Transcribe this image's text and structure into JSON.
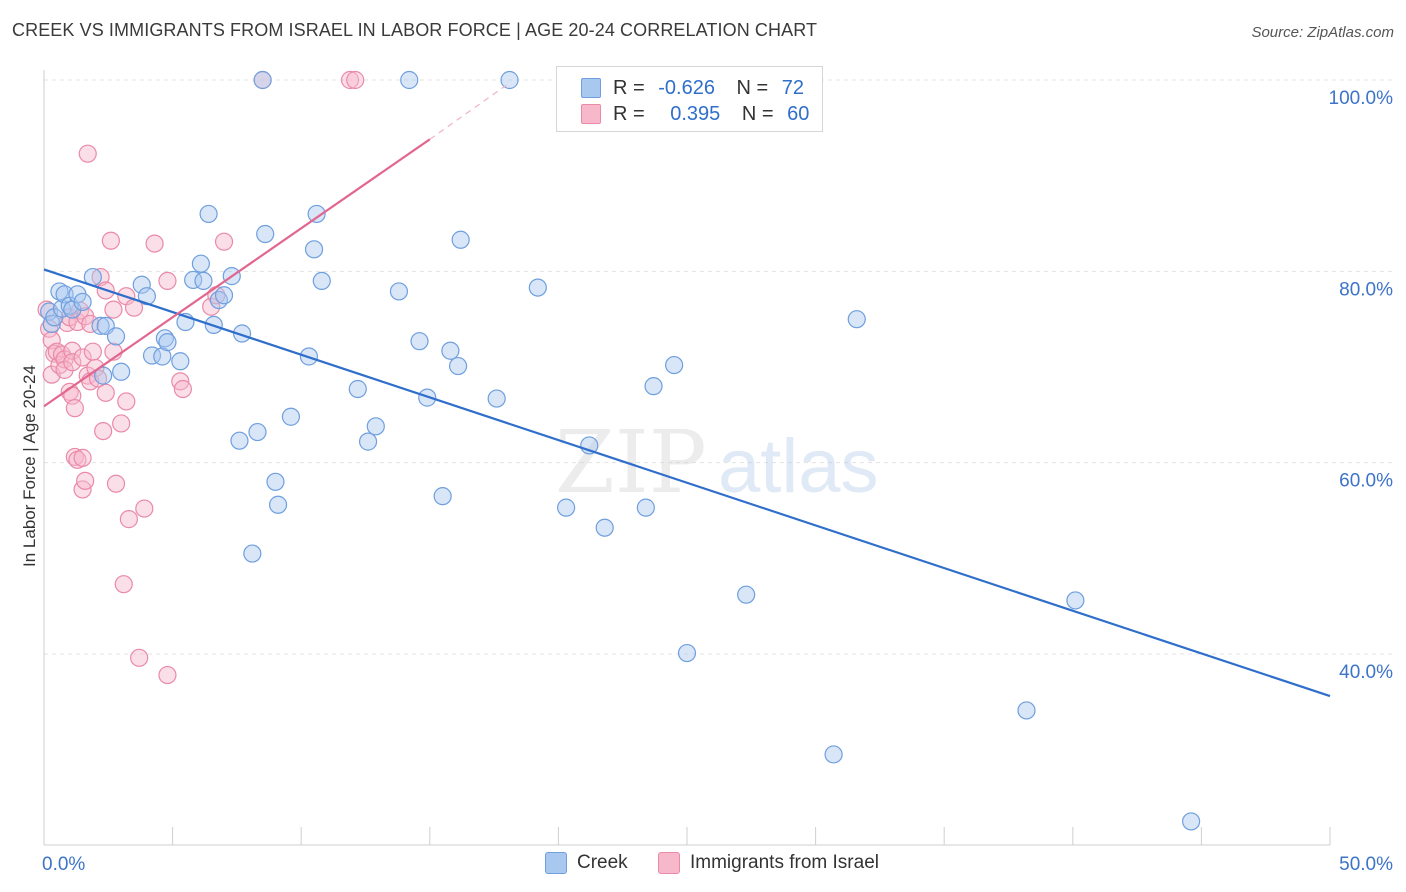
{
  "title": "CREEK VS IMMIGRANTS FROM ISRAEL IN LABOR FORCE | AGE 20-24 CORRELATION CHART",
  "source": "Source: ZipAtlas.com",
  "watermark": {
    "zip": "ZIP",
    "atlas": "atlas"
  },
  "legend": {
    "r_label": "R =",
    "n_label": "N =",
    "series": [
      {
        "r": "-0.626",
        "n": "72"
      },
      {
        "r": "0.395",
        "n": "60"
      }
    ]
  },
  "colors": {
    "creek_fill": "#a9c8f0",
    "creek_stroke": "#6f9fde",
    "creek_line": "#2f6fcb",
    "israel_fill": "#f7b8cb",
    "israel_stroke": "#ea8aa8",
    "israel_line": "#e2678f",
    "tick_text": "#3d73c9"
  },
  "chart_data": {
    "type": "scatter",
    "title": "CREEK VS IMMIGRANTS FROM ISRAEL IN LABOR FORCE | AGE 20-24 CORRELATION CHART",
    "xlabel": "",
    "ylabel": "In Labor Force | Age 20-24",
    "xlim": [
      0,
      50
    ],
    "ylim": [
      20,
      102
    ],
    "x_tick_labels": [
      "0.0%",
      "50.0%"
    ],
    "y_ticks": [
      40,
      60,
      80,
      100
    ],
    "y_tick_labels": [
      "40.0%",
      "60.0%",
      "80.0%",
      "100.0%"
    ],
    "grid": true,
    "legend_position": "top-center",
    "series": [
      {
        "name": "Creek",
        "trend": {
          "x": [
            0,
            50
          ],
          "y": [
            80.2,
            35.6
          ]
        },
        "points": [
          [
            0.2,
            75.8
          ],
          [
            0.3,
            74.5
          ],
          [
            0.4,
            75.2
          ],
          [
            0.6,
            77.9
          ],
          [
            0.7,
            76.1
          ],
          [
            0.8,
            77.6
          ],
          [
            1.0,
            76.4
          ],
          [
            1.1,
            76.0
          ],
          [
            1.3,
            77.6
          ],
          [
            1.5,
            76.8
          ],
          [
            1.9,
            79.4
          ],
          [
            2.2,
            74.3
          ],
          [
            2.3,
            69.1
          ],
          [
            2.4,
            74.3
          ],
          [
            2.8,
            73.2
          ],
          [
            3.0,
            69.5
          ],
          [
            3.8,
            78.6
          ],
          [
            4.0,
            77.4
          ],
          [
            4.2,
            71.2
          ],
          [
            4.6,
            71.1
          ],
          [
            4.7,
            73.0
          ],
          [
            4.8,
            72.6
          ],
          [
            5.3,
            70.6
          ],
          [
            5.5,
            74.7
          ],
          [
            5.8,
            79.1
          ],
          [
            6.1,
            80.8
          ],
          [
            6.2,
            79.0
          ],
          [
            6.4,
            86.0
          ],
          [
            6.6,
            74.4
          ],
          [
            6.8,
            77.0
          ],
          [
            7.0,
            77.5
          ],
          [
            7.3,
            79.5
          ],
          [
            7.6,
            62.3
          ],
          [
            7.7,
            73.5
          ],
          [
            8.1,
            50.5
          ],
          [
            8.3,
            63.2
          ],
          [
            8.5,
            100.0
          ],
          [
            8.6,
            83.9
          ],
          [
            9.0,
            58.0
          ],
          [
            9.1,
            55.6
          ],
          [
            9.6,
            64.8
          ],
          [
            10.3,
            71.1
          ],
          [
            10.5,
            82.3
          ],
          [
            10.6,
            86.0
          ],
          [
            10.8,
            79.0
          ],
          [
            12.2,
            67.7
          ],
          [
            12.6,
            62.2
          ],
          [
            12.9,
            63.8
          ],
          [
            13.8,
            77.9
          ],
          [
            14.2,
            100.0
          ],
          [
            14.6,
            72.7
          ],
          [
            14.9,
            66.8
          ],
          [
            15.5,
            56.5
          ],
          [
            15.8,
            71.7
          ],
          [
            16.1,
            70.1
          ],
          [
            16.2,
            83.3
          ],
          [
            17.6,
            66.7
          ],
          [
            18.1,
            100.0
          ],
          [
            19.2,
            78.3
          ],
          [
            20.3,
            55.3
          ],
          [
            21.2,
            61.8
          ],
          [
            21.8,
            53.2
          ],
          [
            23.4,
            55.3
          ],
          [
            23.7,
            68.0
          ],
          [
            24.5,
            70.2
          ],
          [
            25.0,
            40.1
          ],
          [
            27.3,
            46.2
          ],
          [
            30.7,
            29.5
          ],
          [
            31.6,
            75.0
          ],
          [
            38.2,
            34.1
          ],
          [
            40.1,
            45.6
          ],
          [
            44.6,
            22.5
          ]
        ]
      },
      {
        "name": "Immigrants from Israel",
        "trend": {
          "x": [
            0,
            15
          ],
          "y": [
            65.9,
            93.8
          ]
        },
        "trend_dashed": {
          "x": [
            15,
            18
          ],
          "y": [
            93.8,
            99.5
          ]
        },
        "points": [
          [
            0.1,
            76.0
          ],
          [
            0.2,
            74.0
          ],
          [
            0.3,
            72.8
          ],
          [
            0.3,
            69.2
          ],
          [
            0.4,
            71.4
          ],
          [
            0.5,
            71.6
          ],
          [
            0.6,
            70.2
          ],
          [
            0.7,
            71.3
          ],
          [
            0.8,
            70.8
          ],
          [
            0.8,
            69.7
          ],
          [
            0.9,
            74.6
          ],
          [
            1.0,
            75.2
          ],
          [
            1.0,
            67.4
          ],
          [
            1.1,
            67.0
          ],
          [
            1.1,
            71.7
          ],
          [
            1.1,
            70.5
          ],
          [
            1.2,
            65.7
          ],
          [
            1.2,
            60.6
          ],
          [
            1.3,
            74.7
          ],
          [
            1.3,
            60.3
          ],
          [
            1.4,
            75.9
          ],
          [
            1.5,
            57.2
          ],
          [
            1.5,
            60.5
          ],
          [
            1.5,
            71.0
          ],
          [
            1.6,
            58.1
          ],
          [
            1.6,
            75.3
          ],
          [
            1.7,
            92.3
          ],
          [
            1.7,
            69.1
          ],
          [
            1.8,
            74.5
          ],
          [
            1.8,
            68.5
          ],
          [
            1.9,
            71.6
          ],
          [
            2.0,
            69.9
          ],
          [
            2.1,
            68.8
          ],
          [
            2.2,
            79.4
          ],
          [
            2.3,
            63.3
          ],
          [
            2.4,
            78.0
          ],
          [
            2.4,
            67.3
          ],
          [
            2.6,
            83.2
          ],
          [
            2.7,
            76.0
          ],
          [
            2.7,
            71.6
          ],
          [
            2.8,
            57.8
          ],
          [
            3.0,
            64.1
          ],
          [
            3.1,
            47.3
          ],
          [
            3.2,
            77.4
          ],
          [
            3.2,
            66.4
          ],
          [
            3.3,
            54.1
          ],
          [
            3.5,
            76.2
          ],
          [
            3.7,
            39.6
          ],
          [
            3.9,
            55.2
          ],
          [
            4.3,
            82.9
          ],
          [
            4.8,
            79.0
          ],
          [
            4.8,
            37.8
          ],
          [
            5.3,
            68.5
          ],
          [
            5.4,
            67.7
          ],
          [
            6.5,
            76.3
          ],
          [
            6.7,
            77.5
          ],
          [
            7.0,
            83.1
          ],
          [
            8.5,
            100.0
          ],
          [
            11.9,
            100.0
          ],
          [
            12.1,
            100.0
          ]
        ]
      }
    ]
  }
}
